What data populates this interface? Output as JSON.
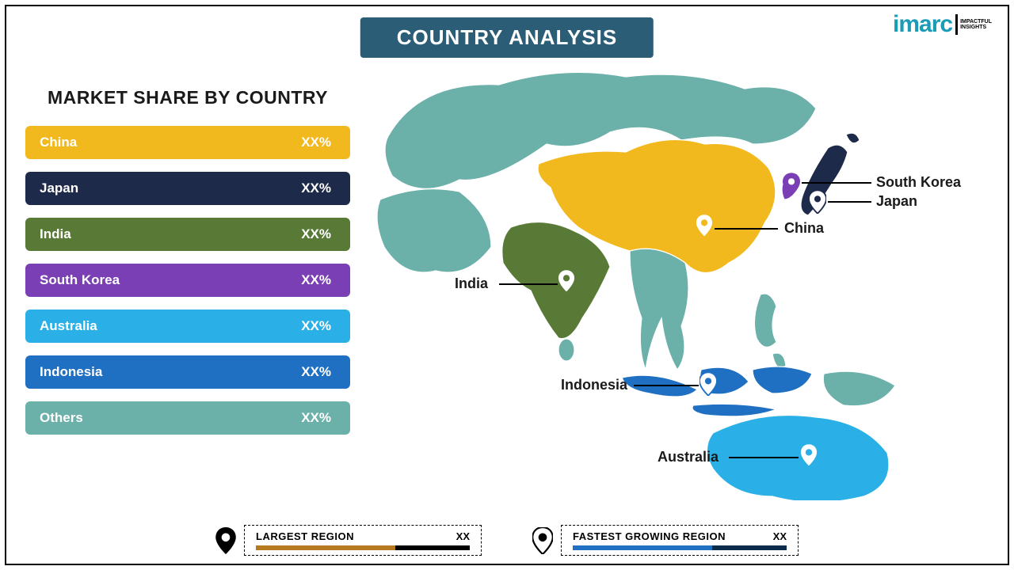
{
  "title": "COUNTRY ANALYSIS",
  "logo": {
    "main": "imarc",
    "sub1": "IMPACTFUL",
    "sub2": "INSIGHTS"
  },
  "panel": {
    "heading": "MARKET SHARE BY COUNTRY",
    "rows": [
      {
        "name": "China",
        "value": "XX%",
        "color": "#f2b91e"
      },
      {
        "name": "Japan",
        "value": "XX%",
        "color": "#1e2a4a"
      },
      {
        "name": "India",
        "value": "XX%",
        "color": "#587a36"
      },
      {
        "name": "South Korea",
        "value": "XX%",
        "color": "#7b3fb5"
      },
      {
        "name": "Australia",
        "value": "XX%",
        "color": "#2ab0e6"
      },
      {
        "name": "Indonesia",
        "value": "XX%",
        "color": "#1f6fc2"
      },
      {
        "name": "Others",
        "value": "XX%",
        "color": "#6bb0a9"
      }
    ]
  },
  "map": {
    "base_color": "#6bb0a9",
    "stroke": "#ffffff",
    "labels": {
      "south_korea": "South Korea",
      "japan": "Japan",
      "china": "China",
      "india": "India",
      "indonesia": "Indonesia",
      "australia": "Australia"
    },
    "countries": {
      "china": {
        "fill": "#f2b91e"
      },
      "japan": {
        "fill": "#1e2a4a"
      },
      "india": {
        "fill": "#587a36"
      },
      "skorea": {
        "fill": "#7b3fb5"
      },
      "australia": {
        "fill": "#2ab0e6"
      },
      "indonesia": {
        "fill": "#1f6fc2"
      }
    }
  },
  "legend": {
    "largest": {
      "title": "LARGEST REGION",
      "value": "XX",
      "bar1": "#b57a1f",
      "bar2": "#000000",
      "pin_fill": "#000000"
    },
    "fastest": {
      "title": "FASTEST GROWING REGION",
      "value": "XX",
      "bar1": "#1f6fc2",
      "bar2": "#0a2b4a",
      "pin_fill": "#ffffff",
      "pin_stroke": "#000000"
    }
  },
  "style": {
    "banner_bg": "#2b5d77",
    "banner_fg": "#ffffff",
    "frame_border": "#000000",
    "heading_color": "#1a1a1a",
    "label_color": "#1a1a1a",
    "logo_color": "#1a9cb7"
  }
}
